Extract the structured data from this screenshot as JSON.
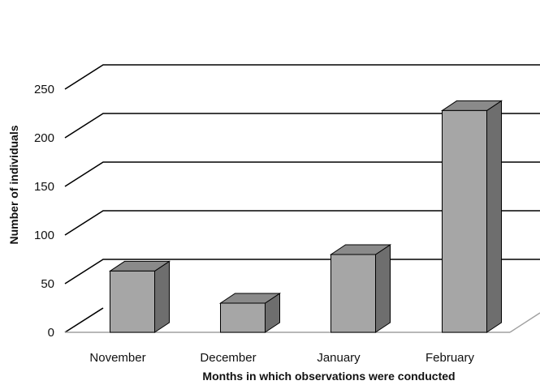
{
  "chart_data": {
    "type": "bar",
    "categories": [
      "November",
      "December",
      "January",
      "February"
    ],
    "values": [
      63,
      30,
      80,
      228
    ],
    "xlabel": "Months in which observations were conducted",
    "ylabel": "Number of individuals",
    "ylim": [
      0,
      250
    ],
    "yticks": [
      0,
      50,
      100,
      150,
      200,
      250
    ],
    "grid": true,
    "style": "3d-bar",
    "colors": {
      "bar_front": "#a6a6a6",
      "bar_side": "#6e6e6e",
      "bar_top": "#8a8a8a",
      "bar_stroke": "#000000",
      "grid": "#000000",
      "floor_edge": "#a0a0a0"
    }
  }
}
